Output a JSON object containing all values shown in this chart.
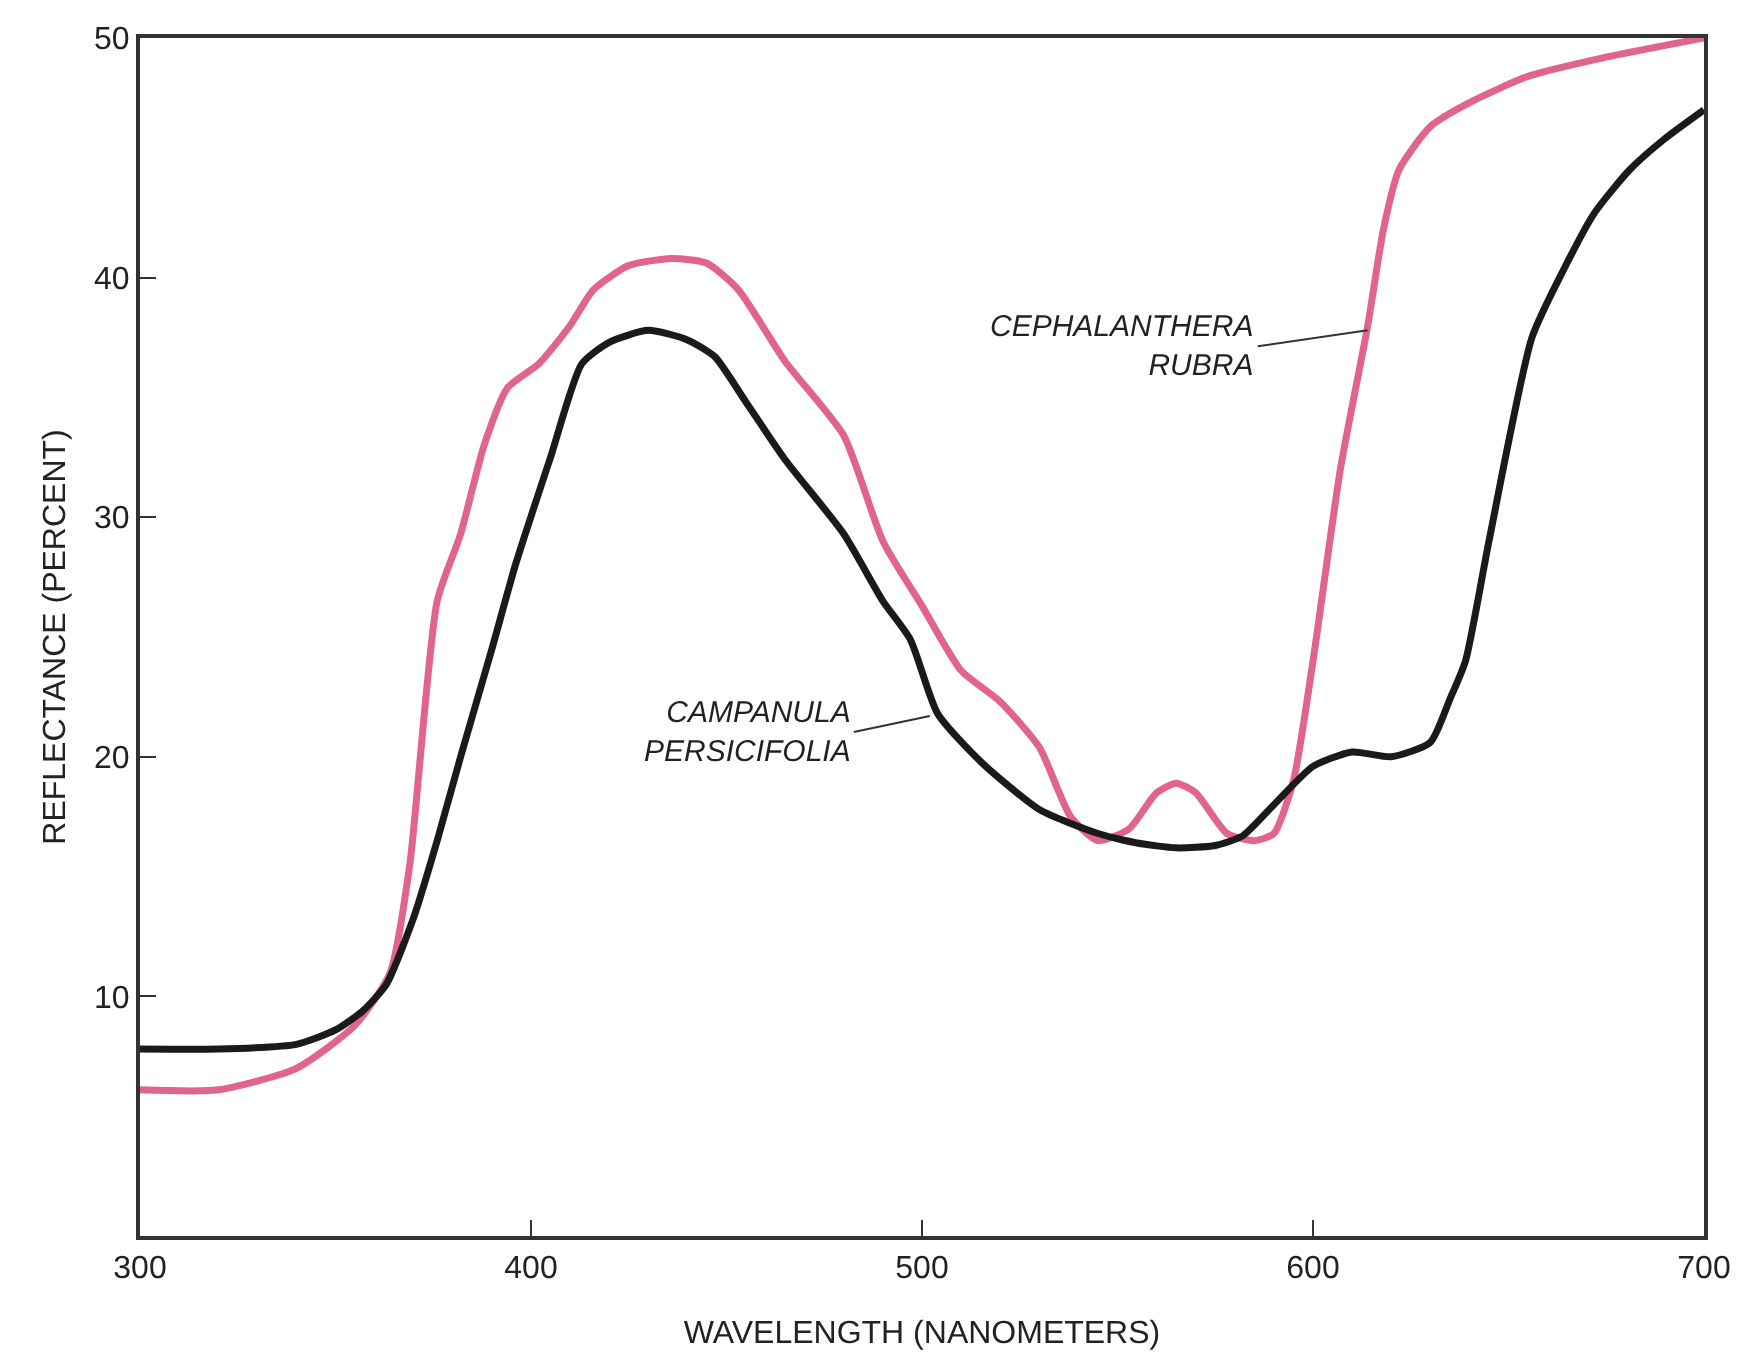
{
  "chart_data": {
    "type": "line",
    "xlabel": "WAVELENGTH (NANOMETERS)",
    "ylabel": "REFLECTANCE (PERCENT)",
    "xlim": [
      300,
      700
    ],
    "xticks": [
      300,
      400,
      500,
      600,
      700
    ],
    "ylim": [
      0,
      50
    ],
    "yticks": [
      10,
      20,
      30,
      40,
      50
    ],
    "legend": false,
    "marker": "none",
    "line_style": "solid",
    "series": [
      {
        "color": "#e0648c",
        "x": [
          300,
          320,
          340,
          355,
          364,
          369,
          376,
          382,
          388,
          394,
          402,
          410,
          416,
          425,
          436,
          445,
          453,
          465,
          480,
          490,
          500,
          510,
          520,
          530,
          538,
          545,
          553,
          560,
          565,
          570,
          578,
          585,
          590,
          595,
          600,
          607,
          614,
          618,
          622,
          630,
          640,
          655,
          675,
          700
        ],
        "values": [
          6.1,
          6.1,
          7,
          8.8,
          11,
          15.5,
          26.5,
          29.3,
          33,
          35.4,
          36.4,
          38,
          39.5,
          40.5,
          40.8,
          40.6,
          39.5,
          36.5,
          33.4,
          29,
          26.3,
          23.6,
          22.3,
          20.4,
          17.5,
          16.5,
          17,
          18.5,
          18.9,
          18.5,
          16.8,
          16.5,
          16.8,
          19,
          24,
          32,
          38,
          42,
          44.5,
          46.3,
          47.3,
          48.4,
          49.2,
          50
        ]
      },
      {
        "color": "#1a1a1a",
        "x": [
          300,
          320,
          340,
          350,
          357,
          363,
          370,
          376,
          382,
          390,
          396,
          405,
          413,
          420,
          430,
          440,
          447,
          455,
          465,
          480,
          490,
          497,
          504,
          515,
          530,
          545,
          555,
          565,
          575,
          582,
          590,
          600,
          610,
          620,
          630,
          635,
          639,
          645,
          656,
          664,
          672,
          681,
          690,
          700
        ],
        "values": [
          7.8,
          7.8,
          8,
          8.6,
          9.4,
          10.5,
          13.3,
          16.5,
          20,
          24.5,
          28,
          32.5,
          36.4,
          37.3,
          37.8,
          37.4,
          36.7,
          34.8,
          32.4,
          29.3,
          26.5,
          24.9,
          21.8,
          19.8,
          17.8,
          16.8,
          16.4,
          16.2,
          16.3,
          16.7,
          18,
          19.6,
          20.2,
          20,
          20.6,
          22.4,
          24,
          29,
          37.5,
          40.3,
          42.7,
          44.5,
          45.8,
          47
        ]
      }
    ],
    "annotations": [
      {
        "text": "CEPHALANTHERA\nRUBRA",
        "x": 614,
        "y": 37.8
      },
      {
        "text": "CAMPANULA\nPERSICIFOLIA",
        "x": 502,
        "y": 21.7
      }
    ]
  }
}
